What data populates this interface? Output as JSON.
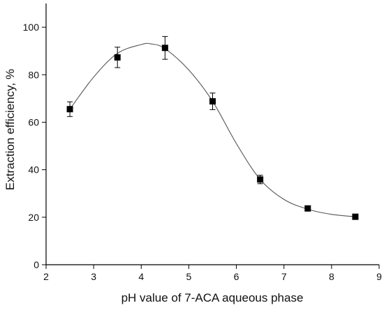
{
  "chart_data": {
    "type": "scatter",
    "title": "",
    "xlabel": "pH value of 7-ACA aqueous phase",
    "ylabel": "Extraction efficiency, %",
    "xlim": [
      2,
      9
    ],
    "ylim": [
      0,
      110
    ],
    "xticks": [
      2,
      3,
      4,
      5,
      6,
      7,
      8,
      9
    ],
    "yticks": [
      0,
      20,
      40,
      60,
      80,
      100
    ],
    "grid": false,
    "legend": "none",
    "marker": "square",
    "colors": {
      "marker": "#000000",
      "curve": "#555555",
      "axis": "#000000"
    },
    "series": [
      {
        "x": [
          2.5,
          3.5,
          4.5,
          5.5,
          6.5,
          7.5,
          8.5
        ],
        "y": [
          65.5,
          87.3,
          91.3,
          68.8,
          35.9,
          23.7,
          20.2
        ],
        "error": [
          3.1,
          4.3,
          4.8,
          3.5,
          1.8,
          0.6,
          0.6
        ]
      }
    ],
    "fit_curve": {
      "x": [
        2.5,
        3.0,
        3.5,
        4.0,
        4.2,
        4.5,
        5.0,
        5.5,
        6.0,
        6.5,
        7.0,
        7.5,
        8.0,
        8.5
      ],
      "y": [
        65.5,
        79.0,
        89.0,
        92.7,
        93.0,
        91.0,
        82.0,
        68.8,
        51.0,
        35.9,
        27.5,
        23.4,
        21.2,
        20.2
      ]
    }
  }
}
